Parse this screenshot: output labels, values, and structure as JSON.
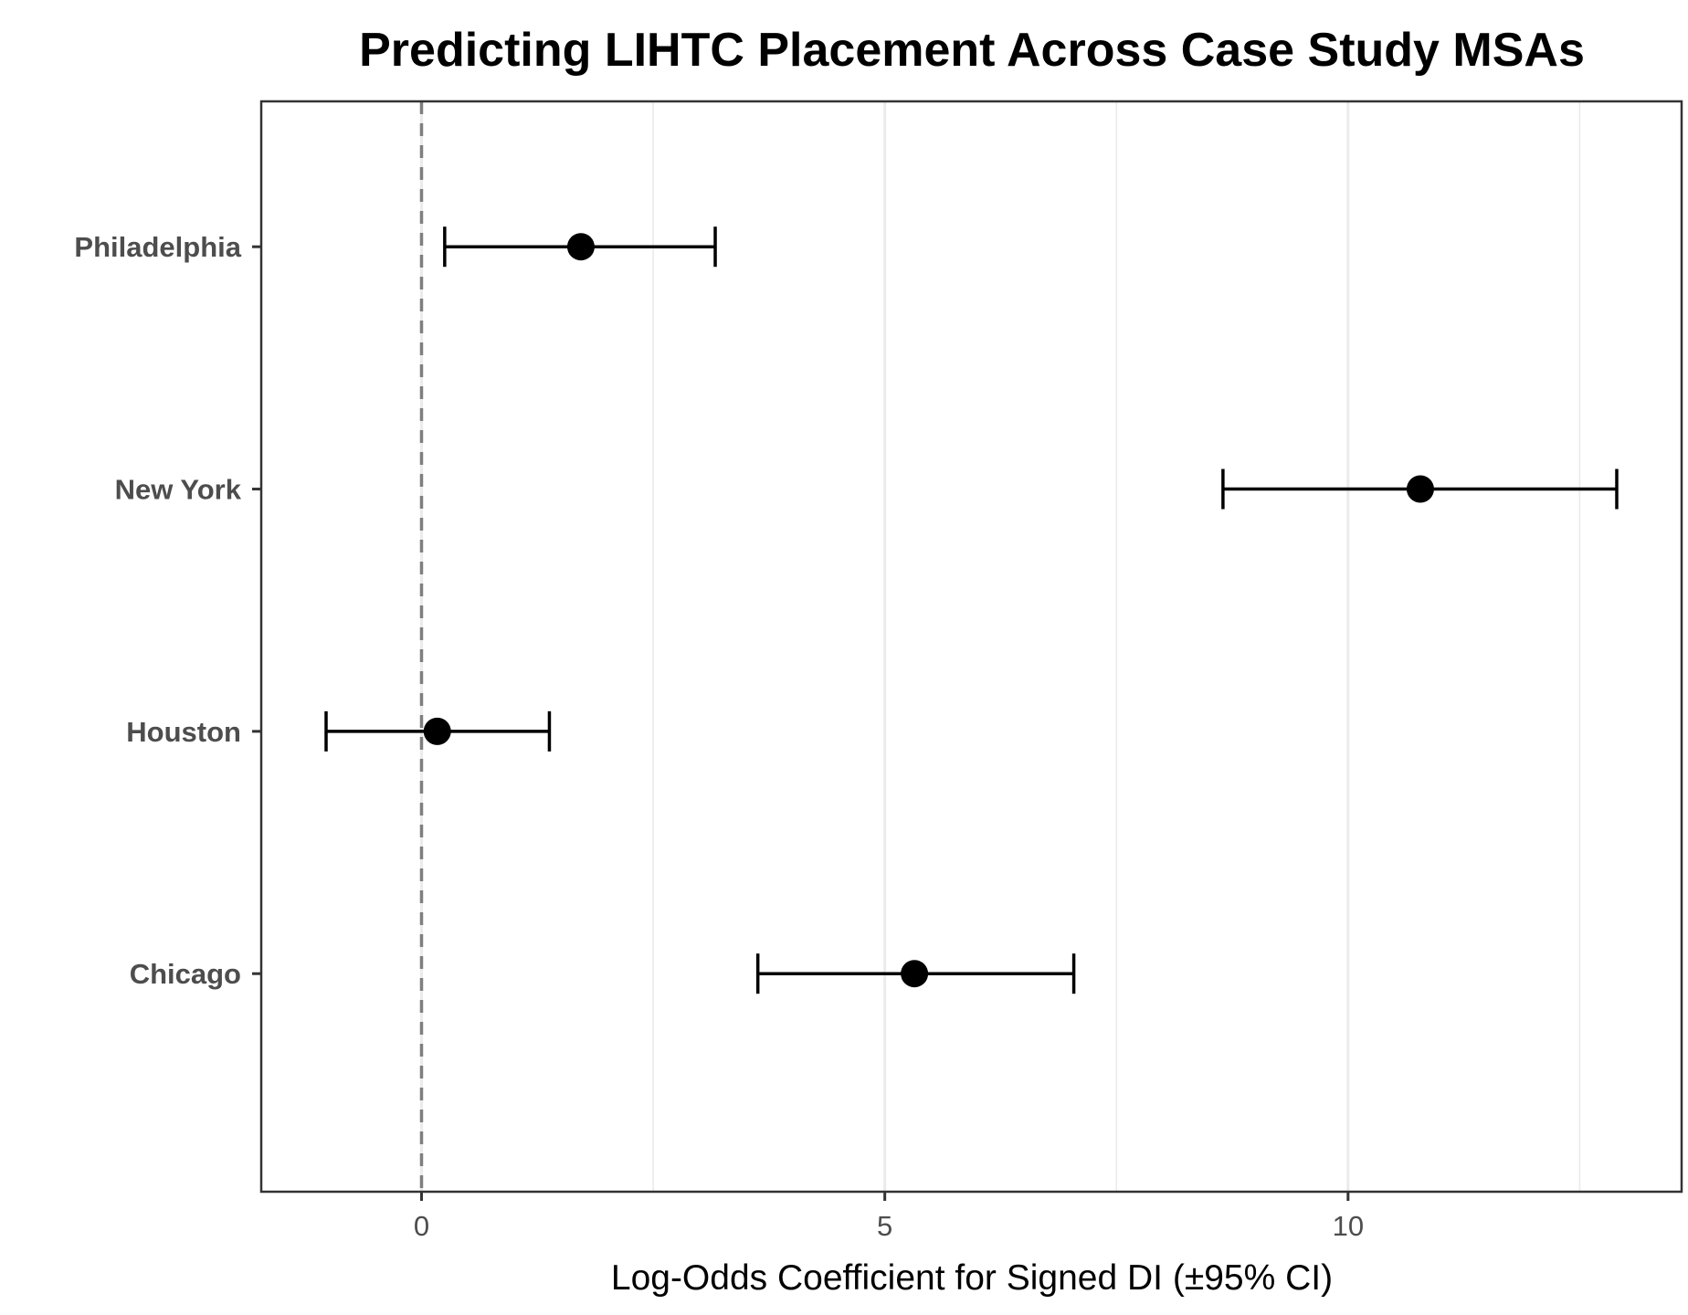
{
  "chart_data": {
    "type": "scatter",
    "title": "Predicting LIHTC Placement Across Case Study MSAs",
    "xlabel": "Log-Odds Coefficient for Signed DI (±95% CI)",
    "ylabel": "",
    "categories": [
      "Philadelphia",
      "New York",
      "Houston",
      "Chicago"
    ],
    "series": [
      {
        "values": [
          1.72,
          10.78,
          0.17,
          5.32
        ],
        "ci_low": [
          0.25,
          8.65,
          -1.03,
          3.63
        ],
        "ci_high": [
          3.17,
          12.9,
          1.38,
          7.04
        ]
      }
    ],
    "xlim": [
      -1.73,
      13.6
    ],
    "xticks": [
      0,
      5,
      10
    ],
    "xtick_labels": [
      "0",
      "5",
      "10"
    ],
    "reference_line": 0,
    "grid": true,
    "legend": "none",
    "colors": {
      "point": "#000000",
      "errorbar": "#000000",
      "reference_line": "#7f7f7f",
      "grid": "#ebebeb",
      "panel_border": "#333333",
      "axis_text": "#4d4d4d"
    }
  }
}
